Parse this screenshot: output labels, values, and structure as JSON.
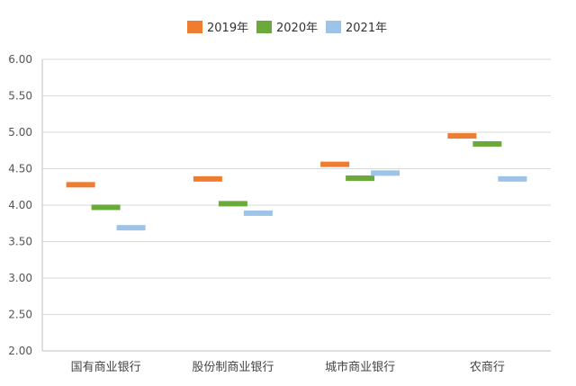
{
  "chart_data": {
    "type": "range-bar",
    "title": "",
    "xlabel": "",
    "ylabel": "",
    "ylim": [
      2.0,
      6.0
    ],
    "yticks": [
      "6.00",
      "5.50",
      "5.00",
      "4.50",
      "4.00",
      "3.50",
      "3.00",
      "2.50",
      "2.00"
    ],
    "grid": true,
    "legend_position": "top-center",
    "categories": [
      "国有商业银行",
      "股份制商业银行",
      "城市商业银行",
      "农商行"
    ],
    "series": [
      {
        "name": "2019年",
        "color": "#ee7d31",
        "values": [
          4.28,
          4.36,
          4.56,
          4.95
        ]
      },
      {
        "name": "2020年",
        "color": "#6aaa3a",
        "values": [
          3.97,
          4.02,
          4.37,
          4.84
        ]
      },
      {
        "name": "2021年",
        "color": "#9dc3e6",
        "values": [
          3.69,
          3.89,
          4.44,
          4.36
        ]
      }
    ]
  }
}
